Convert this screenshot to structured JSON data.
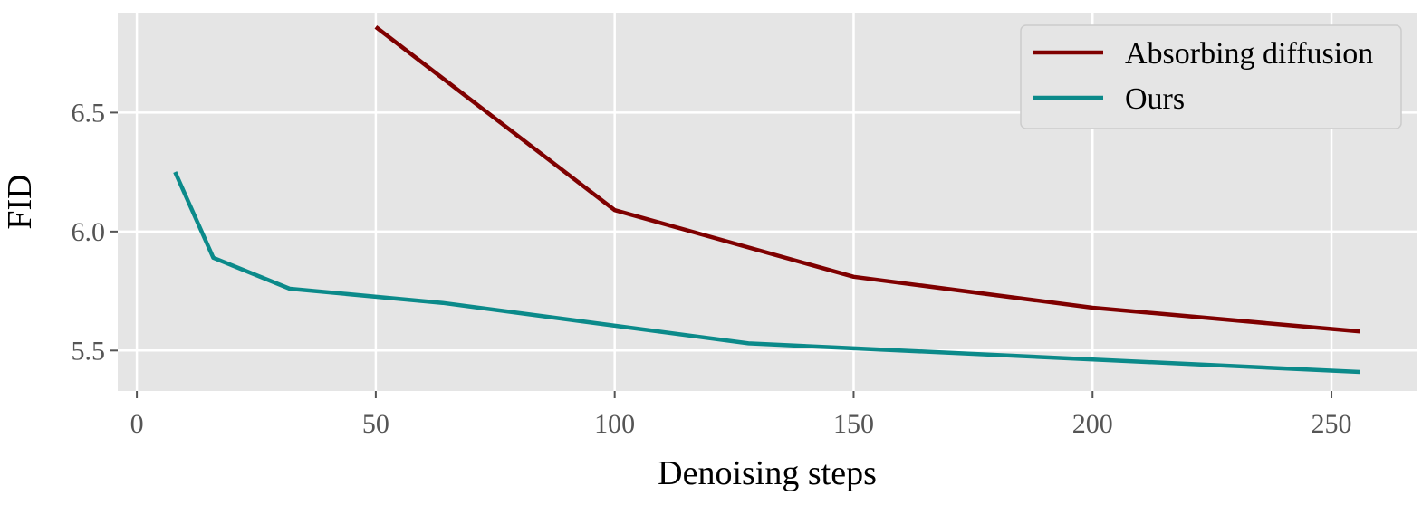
{
  "chart_data": {
    "type": "line",
    "title": "",
    "xlabel": "Denoising steps",
    "ylabel": "FID",
    "xlim": [
      -4,
      268
    ],
    "ylim": [
      5.33,
      6.92
    ],
    "xticks": [
      0,
      50,
      100,
      150,
      200,
      250
    ],
    "xtick_labels": [
      "0",
      "50",
      "100",
      "150",
      "200",
      "250"
    ],
    "yticks": [
      5.5,
      6.0,
      6.5
    ],
    "ytick_labels": [
      "5.5",
      "6.0",
      "6.5"
    ],
    "grid": true,
    "legend_position": "top-right",
    "series": [
      {
        "name": "Absorbing diffusion",
        "color": "#7f0000",
        "x": [
          50,
          100,
          150,
          200,
          256
        ],
        "y": [
          6.86,
          6.09,
          5.81,
          5.68,
          5.58
        ]
      },
      {
        "name": "Ours",
        "color": "#0b8a8a",
        "x": [
          8,
          16,
          32,
          64,
          128,
          256
        ],
        "y": [
          6.25,
          5.89,
          5.76,
          5.7,
          5.53,
          5.41
        ]
      }
    ]
  }
}
